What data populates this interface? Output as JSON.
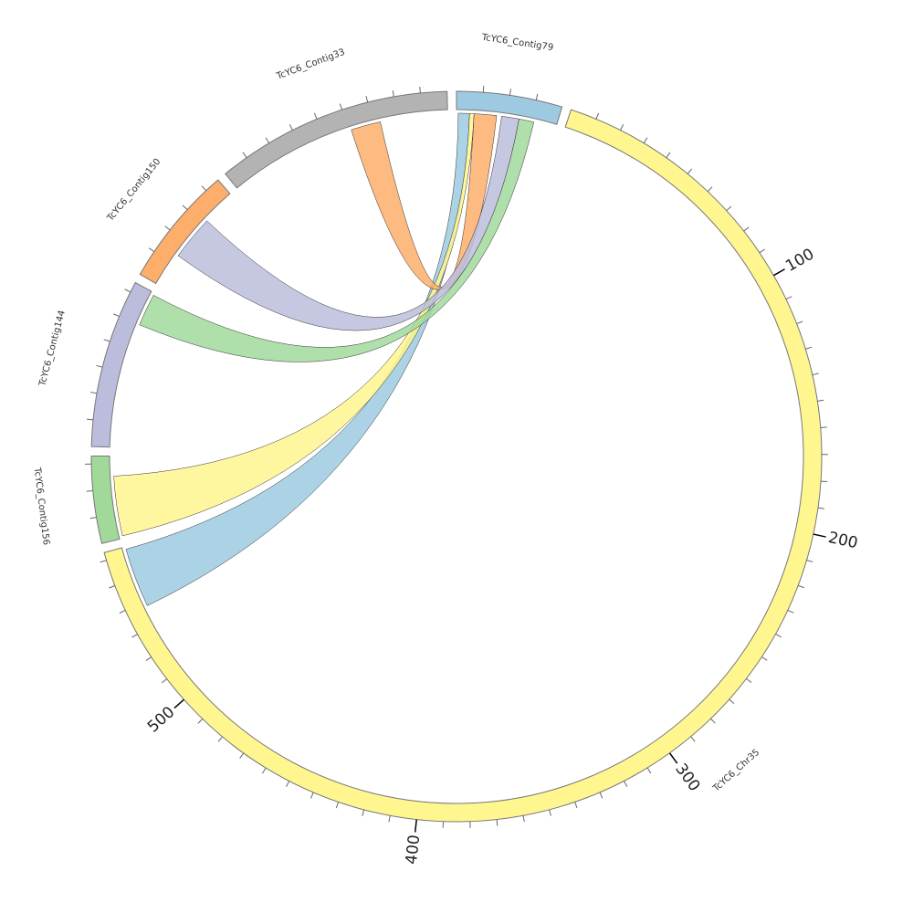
{
  "chart_data": {
    "type": "chord",
    "title": "",
    "units_per_minor_tick": 10,
    "units_per_major_tick": 100,
    "sectors": [
      {
        "name": "TcYC6_Contig79",
        "length": 40,
        "color": "#9ecae1"
      },
      {
        "name": "TcYC6_Chr35",
        "length": 563,
        "color": "#fff68f",
        "tick_labels": [
          "100",
          "200",
          "300",
          "400",
          "500"
        ]
      },
      {
        "name": "TcYC6_Contig156",
        "length": 33,
        "color": "#a1d99b"
      },
      {
        "name": "TcYC6_Contig144",
        "length": 64,
        "color": "#bcbddc"
      },
      {
        "name": "TcYC6_Contig150",
        "length": 46,
        "color": "#fdae6b"
      },
      {
        "name": "TcYC6_Contig33",
        "length": 90,
        "color": "#b3b3b3"
      }
    ],
    "links": [
      {
        "source": "TcYC6_Contig79",
        "source_range": [
          0.7,
          5.2
        ],
        "target": "TcYC6_Chr35",
        "target_range": [
          538,
          562
        ],
        "color": "#9ecae1"
      },
      {
        "source": "TcYC6_Contig79",
        "source_range": [
          5.2,
          7
        ],
        "target": "TcYC6_Contig156",
        "target_range": [
          1,
          25
        ],
        "color": "#fff68f"
      },
      {
        "source": "TcYC6_Contig79",
        "source_range": [
          7,
          16
        ],
        "target": "TcYC6_Contig33",
        "target_range": [
          51,
          63
        ],
        "color": "#fdae6b"
      },
      {
        "source": "TcYC6_Contig79",
        "source_range": [
          18,
          25
        ],
        "target": "TcYC6_Contig150",
        "target_range": [
          14,
          32
        ],
        "color": "#bcbddc"
      },
      {
        "source": "TcYC6_Contig79",
        "source_range": [
          25,
          31
        ],
        "target": "TcYC6_Contig144",
        "target_range": [
          50,
          63
        ],
        "color": "#a1d99b"
      }
    ]
  }
}
